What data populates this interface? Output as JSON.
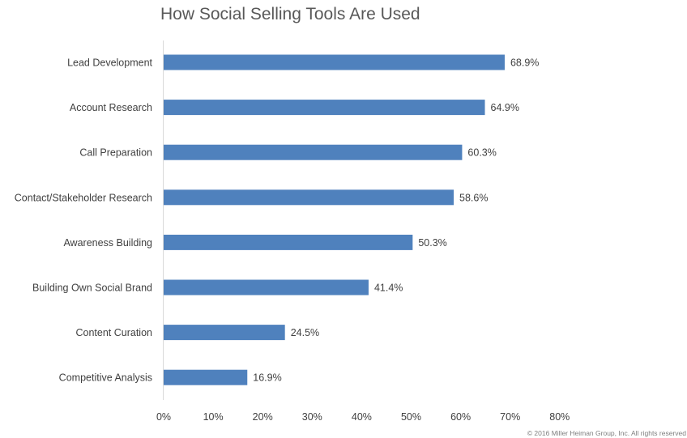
{
  "chart_data": {
    "type": "bar",
    "orientation": "horizontal",
    "title": "How Social Selling Tools Are Used",
    "xlabel": "",
    "ylabel": "",
    "categories": [
      "Lead Development",
      "Account Research",
      "Call Preparation",
      "Contact/Stakeholder Research",
      "Awareness Building",
      "Building Own Social Brand",
      "Content Curation",
      "Competitive Analysis"
    ],
    "values": [
      68.9,
      64.9,
      60.3,
      58.6,
      50.3,
      41.4,
      24.5,
      16.9
    ],
    "data_labels": [
      "68.9%",
      "64.9%",
      "60.3%",
      "58.6%",
      "50.3%",
      "41.4%",
      "24.5%",
      "16.9%"
    ],
    "xlim": [
      0,
      80
    ],
    "x_ticks": [
      0,
      10,
      20,
      30,
      40,
      50,
      60,
      70,
      80
    ],
    "x_tick_labels": [
      "0%",
      "10%",
      "20%",
      "30%",
      "40%",
      "50%",
      "60%",
      "70%",
      "80%"
    ],
    "grid": false,
    "legend": "none",
    "bar_color": "#4f81bd"
  },
  "footer": {
    "copyright": "© 2016 Miller Heiman Group, Inc. All rights reserved"
  }
}
